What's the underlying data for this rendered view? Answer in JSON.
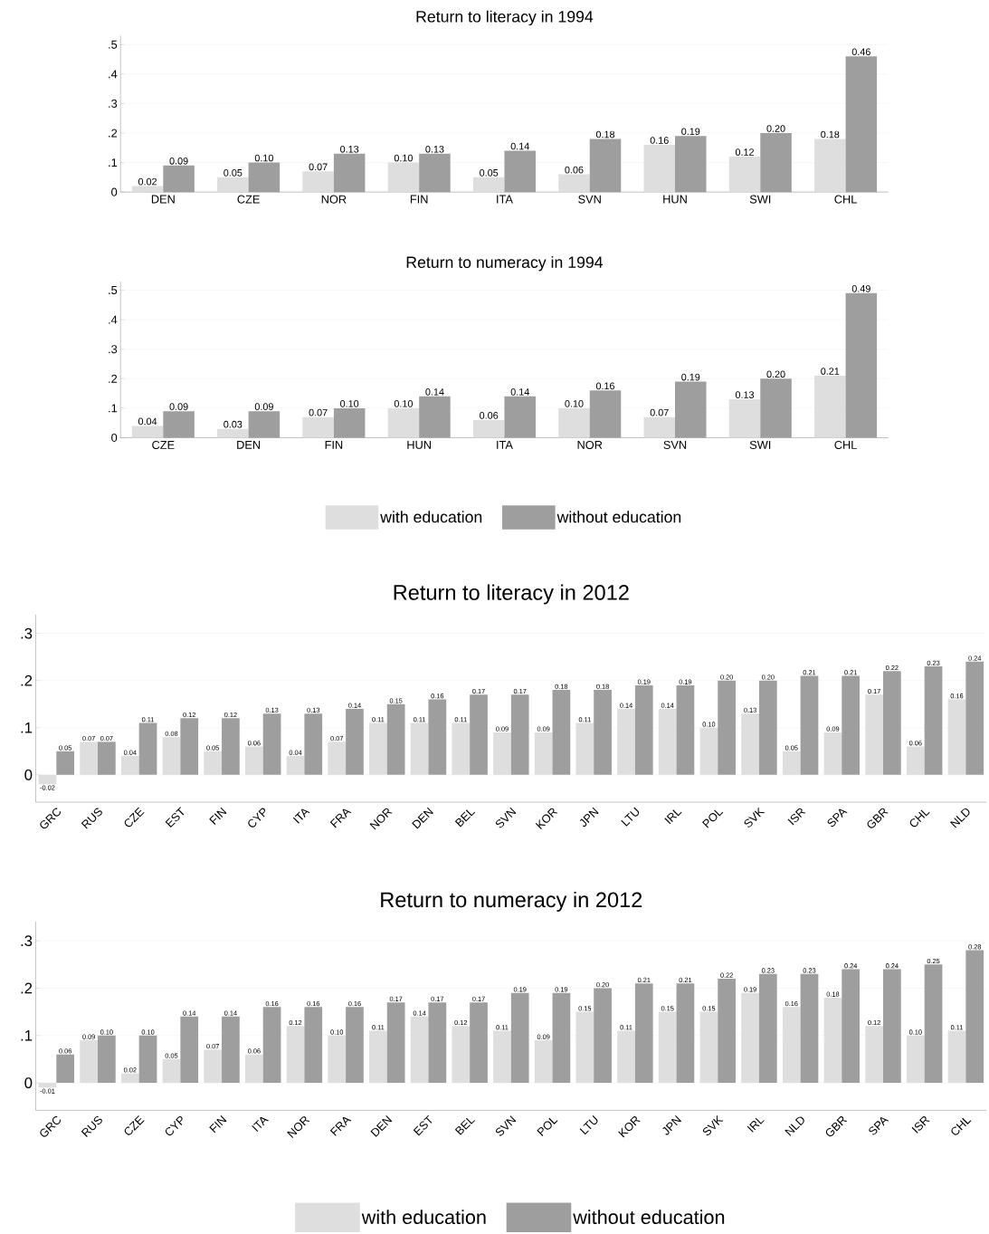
{
  "chart_data": [
    {
      "type": "bar",
      "title": "Return to literacy in 1994",
      "categories": [
        "DEN",
        "CZE",
        "NOR",
        "FIN",
        "ITA",
        "SVN",
        "HUN",
        "SWI",
        "CHL"
      ],
      "series": [
        {
          "color": "#dedede",
          "values": [
            0.02,
            0.05,
            0.07,
            0.1,
            0.05,
            0.06,
            0.16,
            0.12,
            0.18
          ],
          "value_labels": [
            "0.02",
            "0.05",
            "0.07",
            "0.10",
            "0.05",
            "0.06",
            "0.16",
            "0.12",
            "0.18"
          ]
        },
        {
          "color": "#9e9e9e",
          "values": [
            0.09,
            0.1,
            0.13,
            0.13,
            0.14,
            0.18,
            0.19,
            0.2,
            0.46
          ],
          "value_labels": [
            "0.09",
            "0.10",
            "0.13",
            "0.13",
            "0.14",
            "0.18",
            "0.19",
            "0.20",
            "0.46"
          ]
        }
      ],
      "ylim": [
        0,
        0.53
      ],
      "yticks": [
        0,
        {
          "value": 0.1,
          "label": ".1"
        },
        {
          "value": 0.2,
          "label": ".2"
        },
        {
          "value": 0.3,
          "label": ".3"
        },
        {
          "value": 0.4,
          "label": ".4"
        },
        {
          "value": 0.5,
          "label": ".5"
        }
      ],
      "grid": "y"
    },
    {
      "type": "bar",
      "title": "Return to numeracy in 1994",
      "categories": [
        "CZE",
        "DEN",
        "FIN",
        "HUN",
        "ITA",
        "NOR",
        "SVN",
        "SWI",
        "CHL"
      ],
      "series": [
        {
          "name": "with education",
          "color": "#dedede",
          "values": [
            0.04,
            0.03,
            0.07,
            0.1,
            0.06,
            0.1,
            0.07,
            0.13,
            0.21
          ],
          "value_labels": [
            "0.04",
            "0.03",
            "0.07",
            "0.10",
            "0.06",
            "0.10",
            "0.07",
            "0.13",
            "0.21"
          ]
        },
        {
          "name": "without education",
          "color": "#9e9e9e",
          "values": [
            0.09,
            0.09,
            0.1,
            0.14,
            0.14,
            0.16,
            0.19,
            0.2,
            0.49
          ],
          "value_labels": [
            "0.09",
            "0.09",
            "0.10",
            "0.14",
            "0.14",
            "0.16",
            "0.19",
            "0.20",
            "0.49"
          ]
        }
      ],
      "ylim": [
        0,
        0.53
      ],
      "yticks": [
        0,
        {
          "value": 0.1,
          "label": ".1"
        },
        {
          "value": 0.2,
          "label": ".2"
        },
        {
          "value": 0.3,
          "label": ".3"
        },
        {
          "value": 0.4,
          "label": ".4"
        },
        {
          "value": 0.5,
          "label": ".5"
        }
      ],
      "grid": "y",
      "legend": "bottom"
    },
    {
      "type": "bar",
      "title": "Return to literacy in 2012",
      "categories": [
        "GRC",
        "RUS",
        "CZE",
        "EST",
        "FIN",
        "CYP",
        "ITA",
        "FRA",
        "NOR",
        "DEN",
        "BEL",
        "SVN",
        "KOR",
        "JPN",
        "LTU",
        "IRL",
        "POL",
        "SVK",
        "ISR",
        "SPA",
        "GBR",
        "CHL",
        "NLD"
      ],
      "series": [
        {
          "color": "#dedede",
          "values": [
            -0.02,
            0.07,
            0.04,
            0.08,
            0.05,
            0.06,
            0.04,
            0.07,
            0.11,
            0.11,
            0.11,
            0.09,
            0.09,
            0.11,
            0.14,
            0.14,
            0.1,
            0.13,
            0.05,
            0.09,
            0.17,
            0.06,
            0.16
          ],
          "value_labels": [
            "-0.02",
            "0.07",
            "0.04",
            "0.08",
            "0.05",
            "0.06",
            "0.04",
            "0.07",
            "0.11",
            "0.11",
            "0.11",
            "0.09",
            "0.09",
            "0.11",
            "0.14",
            "0.14",
            "0.10",
            "0.13",
            "0.05",
            "0.09",
            "0.17",
            "0.06",
            "0.16"
          ]
        },
        {
          "color": "#9e9e9e",
          "values": [
            0.05,
            0.07,
            0.11,
            0.12,
            0.12,
            0.13,
            0.13,
            0.14,
            0.15,
            0.16,
            0.17,
            0.17,
            0.18,
            0.18,
            0.19,
            0.19,
            0.2,
            0.2,
            0.21,
            0.21,
            0.22,
            0.23,
            0.24
          ],
          "value_labels": [
            "0.05",
            "0.07",
            "0.11",
            "0.12",
            "0.12",
            "0.13",
            "0.13",
            "0.14",
            "0.15",
            "0.16",
            "0.17",
            "0.17",
            "0.18",
            "0.18",
            "0.19",
            "0.19",
            "0.20",
            "0.20",
            "0.21",
            "0.21",
            "0.22",
            "0.23",
            "0.24"
          ]
        }
      ],
      "ylim": [
        -0.058,
        0.34
      ],
      "yticks": [
        0,
        {
          "value": 0.1,
          "label": ".1"
        },
        {
          "value": 0.2,
          "label": ".2"
        },
        {
          "value": 0.3,
          "label": ".3"
        }
      ],
      "grid": "y"
    },
    {
      "type": "bar",
      "title": "Return to numeracy in 2012",
      "categories": [
        "GRC",
        "RUS",
        "CZE",
        "CYP",
        "FIN",
        "ITA",
        "NOR",
        "FRA",
        "DEN",
        "EST",
        "BEL",
        "SVN",
        "POL",
        "LTU",
        "KOR",
        "JPN",
        "SVK",
        "IRL",
        "NLD",
        "GBR",
        "SPA",
        "ISR",
        "CHL"
      ],
      "series": [
        {
          "name": "with education",
          "color": "#dedede",
          "values": [
            -0.01,
            0.09,
            0.02,
            0.05,
            0.07,
            0.06,
            0.12,
            0.1,
            0.11,
            0.14,
            0.12,
            0.11,
            0.09,
            0.15,
            0.11,
            0.15,
            0.15,
            0.19,
            0.16,
            0.18,
            0.12,
            0.1,
            0.11
          ],
          "value_labels": [
            "-0.01",
            "0.09",
            "0.02",
            "0.05",
            "0.07",
            "0.06",
            "0.12",
            "0.10",
            "0.11",
            "0.14",
            "0.12",
            "0.11",
            "0.09",
            "0.15",
            "0.11",
            "0.15",
            "0.15",
            "0.19",
            "0.16",
            "0.18",
            "0.12",
            "0.10",
            "0.11"
          ]
        },
        {
          "name": "without education",
          "color": "#9e9e9e",
          "values": [
            0.06,
            0.1,
            0.1,
            0.14,
            0.14,
            0.16,
            0.16,
            0.16,
            0.17,
            0.17,
            0.17,
            0.19,
            0.19,
            0.2,
            0.21,
            0.21,
            0.22,
            0.23,
            0.23,
            0.24,
            0.24,
            0.25,
            0.28
          ],
          "value_labels": [
            "0.06",
            "0.10",
            "0.10",
            "0.14",
            "0.14",
            "0.16",
            "0.16",
            "0.16",
            "0.17",
            "0.17",
            "0.17",
            "0.19",
            "0.19",
            "0.20",
            "0.21",
            "0.21",
            "0.22",
            "0.23",
            "0.23",
            "0.24",
            "0.24",
            "0.25",
            "0.28"
          ]
        }
      ],
      "ylim": [
        -0.058,
        0.34
      ],
      "yticks": [
        0,
        {
          "value": 0.1,
          "label": ".1"
        },
        {
          "value": 0.2,
          "label": ".2"
        },
        {
          "value": 0.3,
          "label": ".3"
        }
      ],
      "grid": "y",
      "legend": "bottom"
    }
  ]
}
